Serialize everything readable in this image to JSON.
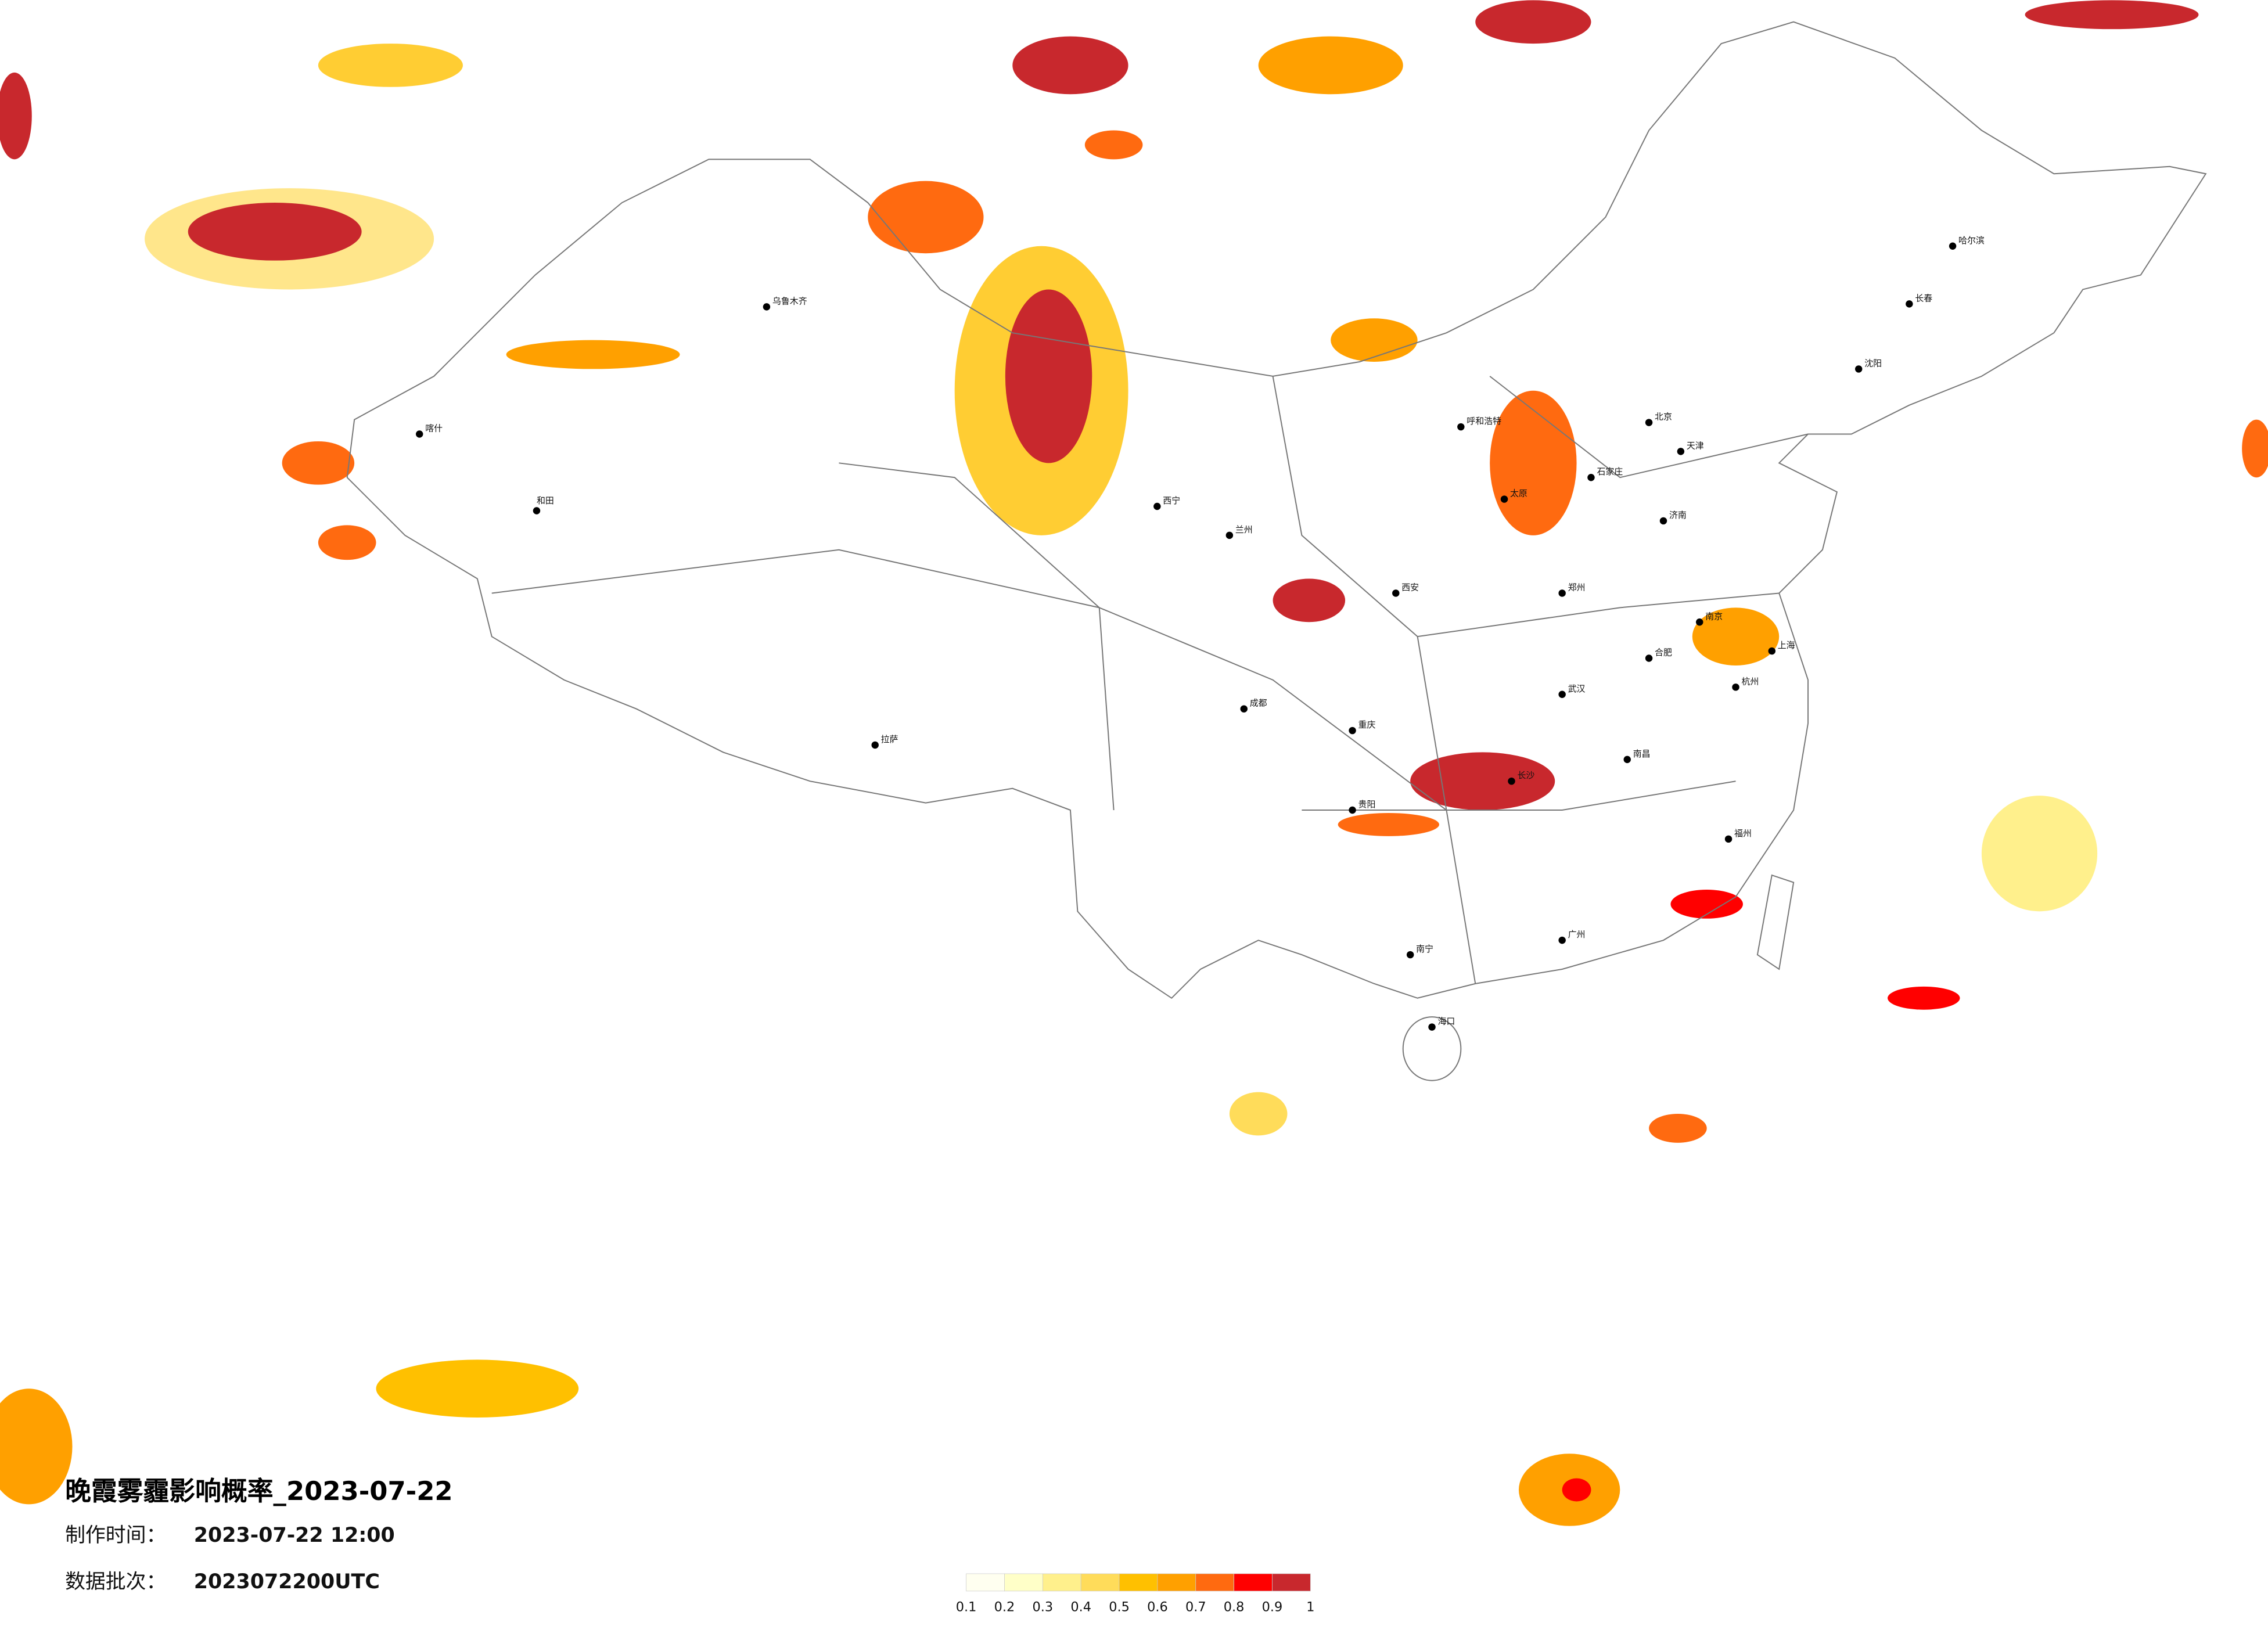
{
  "header": {
    "title": "晚霞雾霾影响概率_2023-07-22",
    "made_time_label": "制作时间：",
    "made_time": "2023-07-22 12:00",
    "batch_label": "数据批次：",
    "batch": "2023072200UTC"
  },
  "legend": {
    "colors": [
      "#fffff0",
      "#ffffc8",
      "#fff08c",
      "#ffdc5a",
      "#ffc000",
      "#ffa000",
      "#ff6a10",
      "#ff0000",
      "#c8282d"
    ],
    "ticks": [
      0.1,
      0.2,
      0.3,
      0.4,
      0.5,
      0.6,
      0.7,
      0.8,
      0.9,
      1
    ]
  },
  "cities": [
    "北京",
    "天津",
    "石家庄",
    "太原",
    "济南",
    "郑州",
    "武汉",
    "长沙",
    "南昌",
    "广州",
    "南宁",
    "贵阳",
    "重庆",
    "成都",
    "西安",
    "兰州",
    "西宁",
    "拉萨",
    "乌鲁木齐",
    "呼和浩特",
    "哈尔滨",
    "长春",
    "沈阳",
    "上海",
    "杭州",
    "南京",
    "合肥",
    "福州",
    "海口",
    "和田",
    "喀什"
  ]
}
